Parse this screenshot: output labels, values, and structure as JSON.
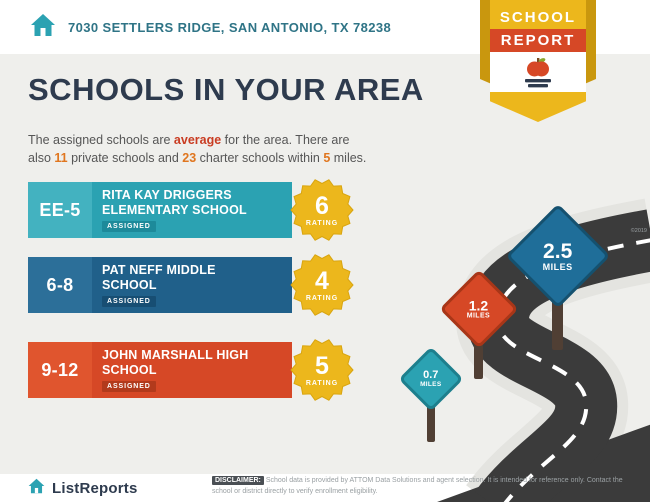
{
  "header": {
    "address": "7030 SETTLERS RIDGE, SAN ANTONIO, TX 78238",
    "badge_line1": "SCHOOL",
    "badge_line2": "REPORT"
  },
  "title": "SCHOOLS IN YOUR AREA",
  "intro": {
    "t1": "The assigned schools are ",
    "h1": "average",
    "t2": " for the area. There are also ",
    "h2": "11",
    "t3": " private schools and ",
    "h3": "23",
    "t4": " charter schools within ",
    "h4": "5",
    "t5": " miles."
  },
  "labels": {
    "assigned": "ASSIGNED",
    "rating": "RATING",
    "miles": "MILES"
  },
  "schools": [
    {
      "grades": "EE-5",
      "name": "RITA KAY DRIGGERS ELEMENTARY SCHOOL",
      "rating": "6",
      "color": "#2ba2b2"
    },
    {
      "grades": "6-8",
      "name": "PAT NEFF MIDDLE SCHOOL",
      "rating": "4",
      "color": "#20608a"
    },
    {
      "grades": "9-12",
      "name": "JOHN MARSHALL HIGH SCHOOL",
      "rating": "5",
      "color": "#d64826"
    }
  ],
  "signs": [
    {
      "distance": "2.5",
      "color": "#1f6e99"
    },
    {
      "distance": "1.2",
      "color": "#d64826"
    },
    {
      "distance": "0.7",
      "color": "#2ba2b2"
    }
  ],
  "footer": {
    "brand": "ListReports",
    "disclaimer_label": "DISCLAIMER:",
    "disclaimer_text": "School data is provided by ATTOM Data Solutions and agent selection. It is intended for reference only. Contact the school or district directly to verify enrollment eligibility.",
    "copyright": "©2019"
  },
  "colors": {
    "background": "#efefec",
    "gold": "#ecb71c",
    "red": "#d64826",
    "teal": "#2ba2b2",
    "blue": "#1f6e99",
    "navy_text": "#2e3b4e",
    "road": "#3b3b3b",
    "accent_average": "#c93c22",
    "accent_numbers": "#e0761f"
  }
}
